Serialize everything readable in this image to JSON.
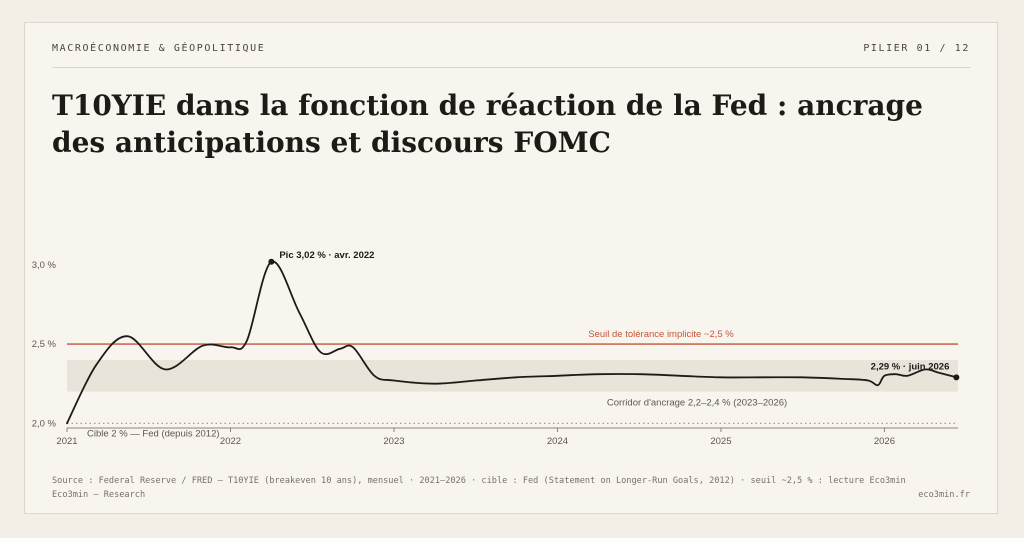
{
  "header": {
    "kicker": "MACROÉCONOMIE & GÉOPOLITIQUE",
    "pillar": "PILIER 01 / 12"
  },
  "title": "T10YIE dans la fonction de réaction de la Fed : ancrage des anticipations et discours FOMC",
  "chart_data": {
    "type": "line",
    "title": "",
    "xlabel": "",
    "ylabel": "",
    "xlim": [
      2021.0,
      2026.45
    ],
    "ylim": [
      1.97,
      3.05
    ],
    "x_ticks": [
      2021,
      2022,
      2023,
      2024,
      2025,
      2026
    ],
    "x_tick_labels": [
      "2021",
      "2022",
      "2023",
      "2024",
      "2025",
      "2026"
    ],
    "y_ticks": [
      2.0,
      2.5,
      3.0
    ],
    "y_tick_labels": [
      "2,0 %",
      "2,5 %",
      "3,0 %"
    ],
    "grid": false,
    "legend": "none",
    "series": [
      {
        "color": "#1d1b18",
        "x": [
          2021.0,
          2021.18,
          2021.37,
          2021.6,
          2021.83,
          2022.0,
          2022.1,
          2022.25,
          2022.42,
          2022.55,
          2022.67,
          2022.75,
          2022.88,
          2023.0,
          2023.25,
          2023.5,
          2023.75,
          2024.0,
          2024.25,
          2024.5,
          2024.75,
          2025.0,
          2025.25,
          2025.5,
          2025.75,
          2025.9,
          2025.96,
          2026.0,
          2026.07,
          2026.14,
          2026.25,
          2026.33,
          2026.44
        ],
        "values": [
          2.0,
          2.37,
          2.55,
          2.34,
          2.49,
          2.48,
          2.52,
          3.02,
          2.7,
          2.45,
          2.47,
          2.48,
          2.3,
          2.27,
          2.25,
          2.27,
          2.29,
          2.3,
          2.31,
          2.31,
          2.3,
          2.29,
          2.29,
          2.29,
          2.28,
          2.27,
          2.24,
          2.3,
          2.31,
          2.3,
          2.34,
          2.32,
          2.29
        ]
      }
    ],
    "threshold": {
      "value": 2.5,
      "label": "Seuil de tolérance implicite ~2,5 %",
      "color": "#c4553a"
    },
    "target": {
      "value": 2.0,
      "label": "Cible 2 % — Fed (depuis 2012)"
    },
    "corridor": {
      "low": 2.2,
      "high": 2.4,
      "x_start": 2021.0,
      "x_end": 2026.45,
      "label": "Corridor d'ancrage 2,2–2,4 % (2023–2026)",
      "color": "#e9e4d9"
    },
    "annotations": [
      {
        "x": 2022.25,
        "y": 3.02,
        "label": "Pic 3,02 % · avr. 2022"
      },
      {
        "x": 2026.44,
        "y": 2.29,
        "label": "2,29 % · juin 2026"
      }
    ]
  },
  "footer": {
    "source": "Source : Federal Reserve / FRED — T10YIE (breakeven 10 ans), mensuel · 2021–2026 · cible : Fed (Statement on Longer-Run Goals, 2012) · seuil ~2,5 % : lecture Eco3min",
    "brand": "Eco3min — Research",
    "site": "eco3min.fr"
  }
}
